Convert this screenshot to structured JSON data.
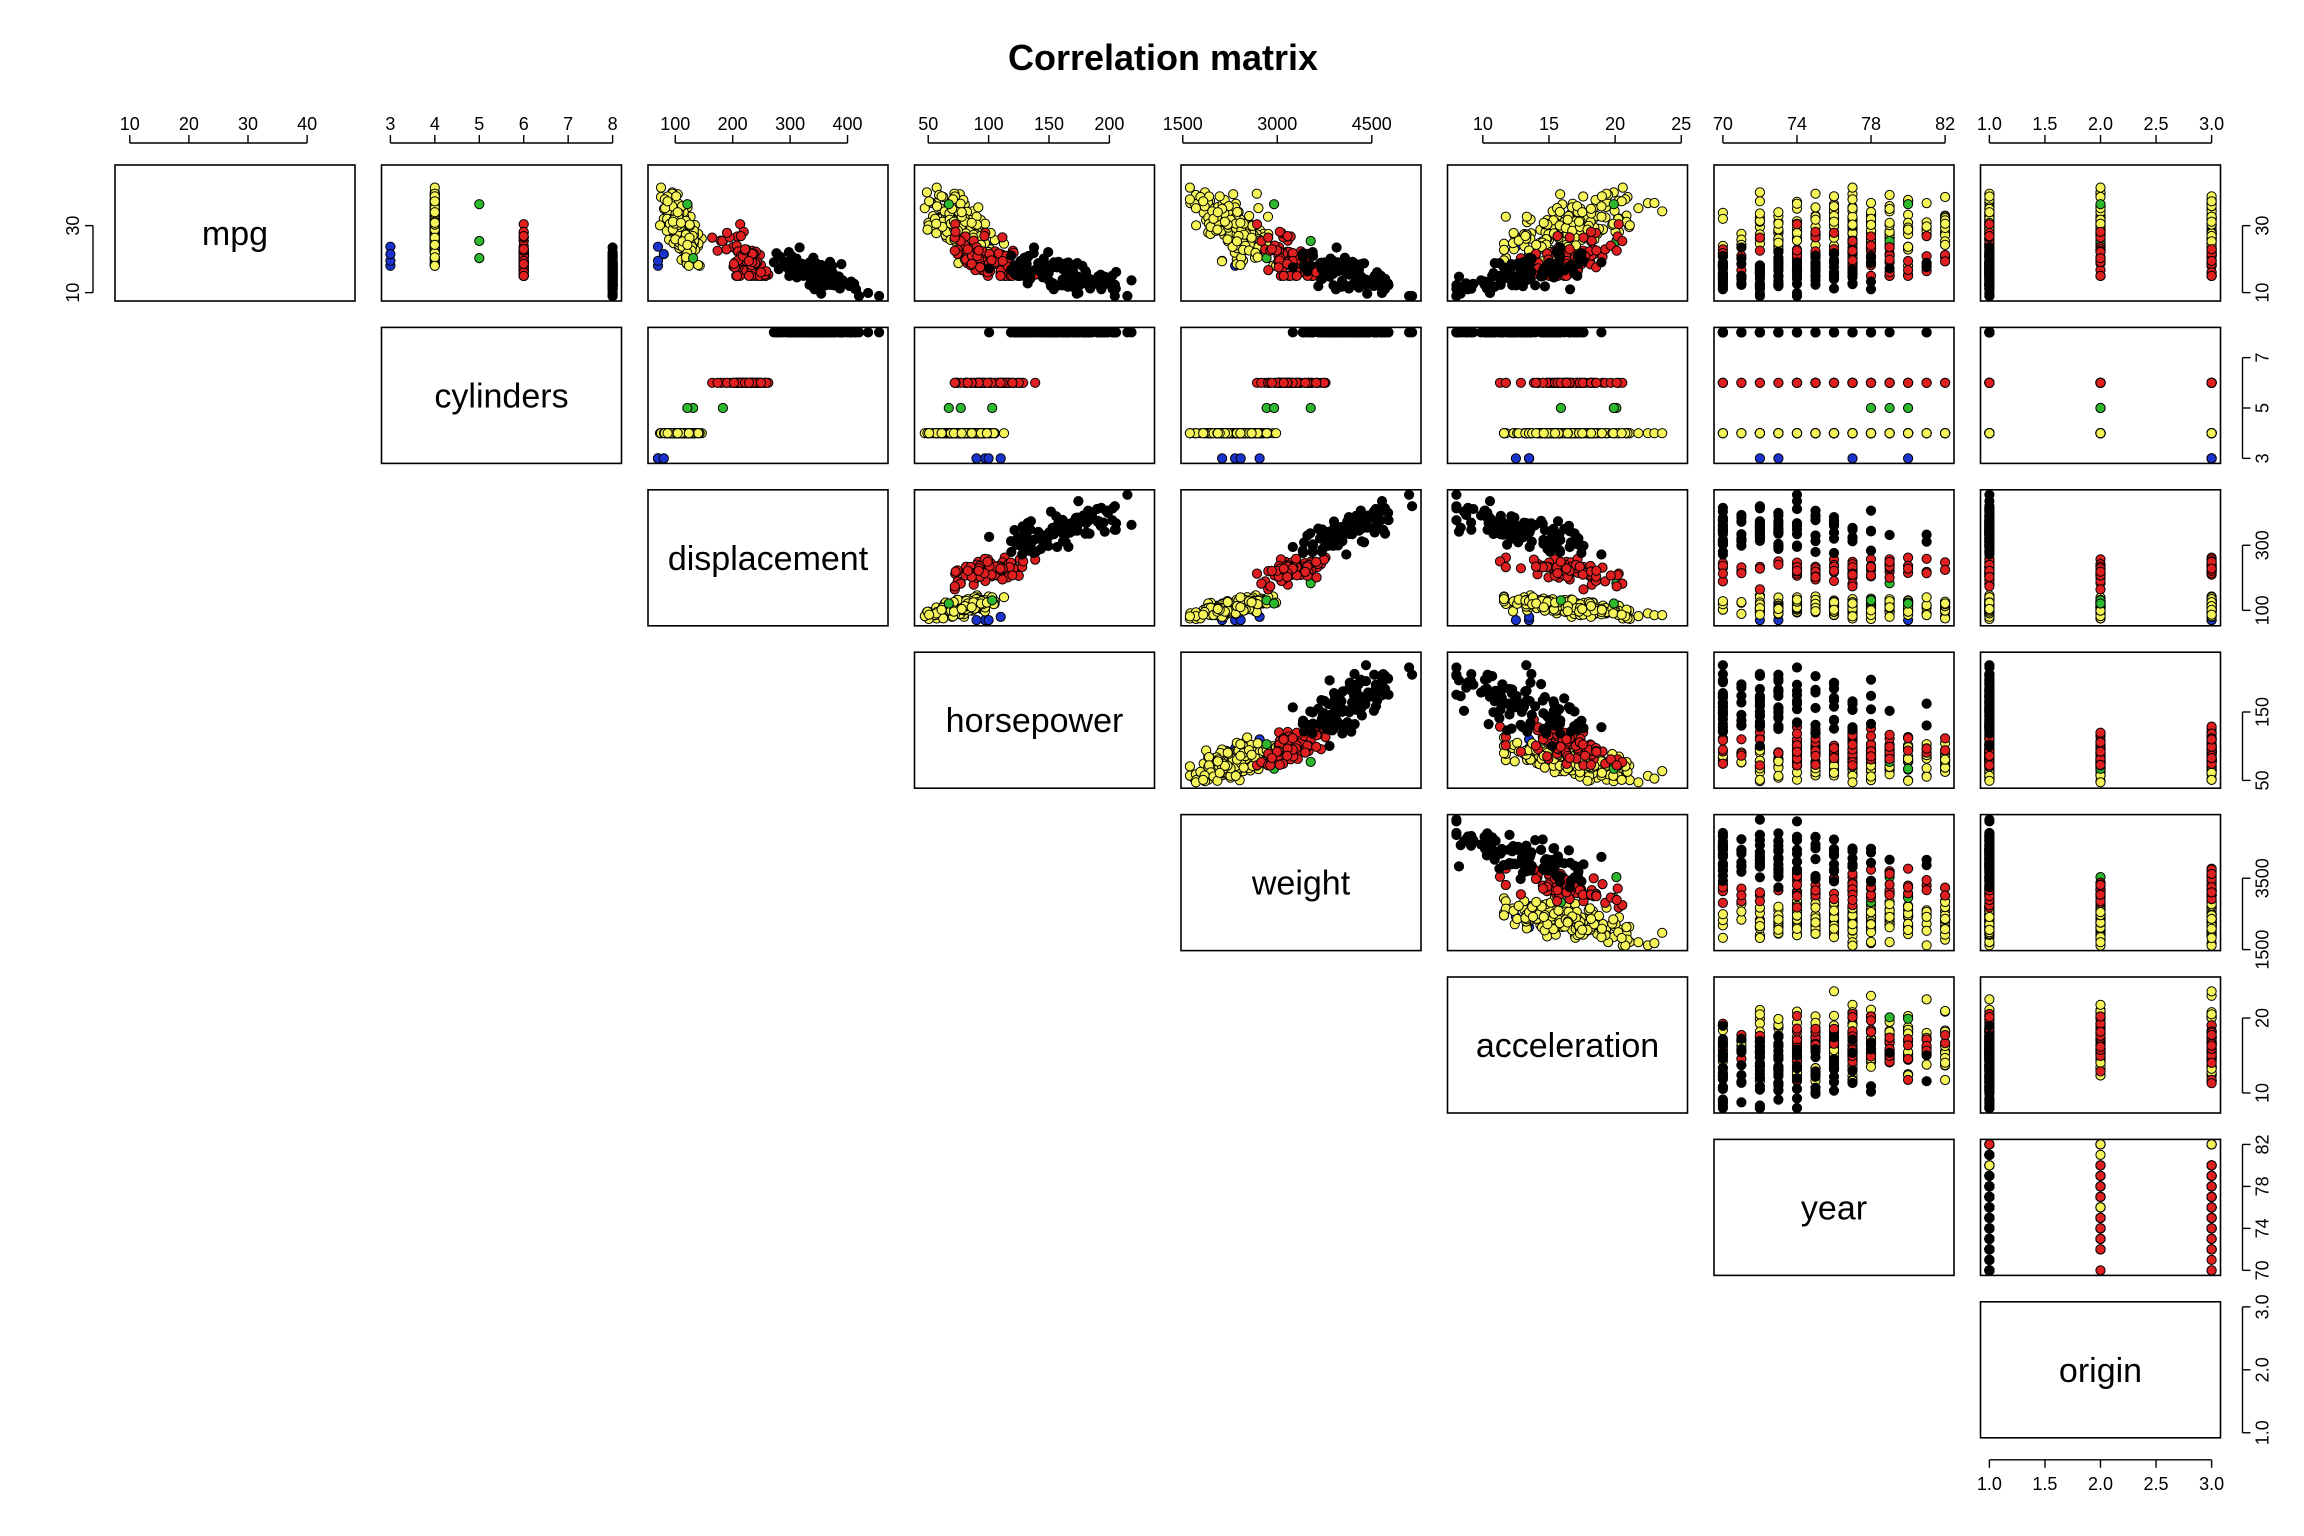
{
  "chart_data": {
    "type": "scatter",
    "title": "Correlation matrix",
    "layout": "upper-triangle scatterplot matrix",
    "variables": [
      {
        "name": "mpg",
        "range": [
          9,
          46.6
        ],
        "ticks": [
          10,
          20,
          30,
          40
        ],
        "yticks": [
          10,
          30
        ]
      },
      {
        "name": "cylinders",
        "range": [
          3,
          8
        ],
        "ticks": [
          3,
          4,
          5,
          6,
          7,
          8
        ],
        "yticks": [
          3,
          5,
          7
        ]
      },
      {
        "name": "displacement",
        "range": [
          68,
          455
        ],
        "ticks": [
          100,
          200,
          300,
          400
        ],
        "yticks": [
          100,
          300
        ]
      },
      {
        "name": "horsepower",
        "range": [
          46,
          230
        ],
        "ticks": [
          50,
          100,
          150,
          200
        ],
        "yticks": [
          50,
          150
        ]
      },
      {
        "name": "weight",
        "range": [
          1613,
          5140
        ],
        "ticks": [
          1500,
          3000,
          4500
        ],
        "yticks": [
          1500,
          3500
        ]
      },
      {
        "name": "acceleration",
        "range": [
          8,
          24.8
        ],
        "ticks": [
          10,
          15,
          20,
          25
        ],
        "yticks": [
          10,
          20
        ]
      },
      {
        "name": "year",
        "range": [
          70,
          82
        ],
        "ticks": [
          70,
          74,
          78,
          82
        ],
        "yticks": [
          70,
          74,
          78,
          82
        ]
      },
      {
        "name": "origin",
        "range": [
          1,
          3
        ],
        "ticks": [
          1.0,
          1.5,
          2.0,
          2.5,
          3.0
        ],
        "yticks": [
          1.0,
          2.0,
          3.0
        ]
      }
    ],
    "series": [
      {
        "cylinders": 3,
        "color": "#1a33cc",
        "count": 4,
        "mpg": [
          18,
          19.5,
          23.7,
          21.5
        ],
        "displacement": [
          70,
          70,
          70,
          80
        ],
        "horsepower": [
          97,
          90,
          100,
          110
        ],
        "weight": [
          2330,
          2124,
          2420,
          2720
        ],
        "acceleration": [
          13.5,
          13.5,
          12.5,
          13.5
        ],
        "year": [
          72,
          73,
          80,
          77
        ],
        "origin": [
          3,
          3,
          3,
          3
        ]
      },
      {
        "cylinders": 4,
        "color": "#f5f55a",
        "count": 199,
        "mpg": [
          [
            18,
            46.6
          ],
          29
        ],
        "displacement": [
          [
            68,
            156
          ],
          110
        ],
        "horsepower": [
          [
            46,
            115
          ],
          78
        ],
        "weight": [
          [
            1613,
            3270
          ],
          2300
        ],
        "acceleration": [
          [
            11.6,
            24.8
          ],
          16.6
        ],
        "year": [
          [
            70,
            82
          ],
          77
        ],
        "origin": [
          1,
          2,
          3
        ]
      },
      {
        "cylinders": 5,
        "color": "#2db82d",
        "count": 3,
        "mpg": [
          20.3,
          25.4,
          36.4
        ],
        "displacement": [
          131,
          183,
          121
        ],
        "horsepower": [
          103,
          77,
          67
        ],
        "weight": [
          2830,
          3530,
          2950
        ],
        "acceleration": [
          15.9,
          20.1,
          19.9
        ],
        "year": [
          78,
          79,
          80
        ],
        "origin": [
          2,
          2,
          2
        ]
      },
      {
        "cylinders": 6,
        "color": "#e02020",
        "count": 83,
        "mpg": [
          [
            15,
            38
          ],
          20
        ],
        "displacement": [
          [
            145,
            262
          ],
          225
        ],
        "horsepower": [
          [
            72,
            165
          ],
          100
        ],
        "weight": [
          [
            2470,
            3910
          ],
          3200
        ],
        "acceleration": [
          [
            11.3,
            21
          ],
          16.3
        ],
        "year": [
          [
            70,
            82
          ],
          76
        ],
        "origin": [
          1,
          2,
          3
        ]
      },
      {
        "cylinders": 8,
        "color": "#000000",
        "count": 103,
        "mpg": [
          [
            9,
            26.6
          ],
          15
        ],
        "displacement": [
          [
            260,
            455
          ],
          345
        ],
        "horsepower": [
          [
            90,
            230
          ],
          158
        ],
        "weight": [
          [
            3086,
            5140
          ],
          4100
        ],
        "acceleration": [
          [
            8,
            22.2
          ],
          12.9
        ],
        "year": [
          [
            70,
            81
          ],
          73
        ],
        "origin": [
          1
        ]
      }
    ],
    "legend": "none",
    "grid": false
  }
}
